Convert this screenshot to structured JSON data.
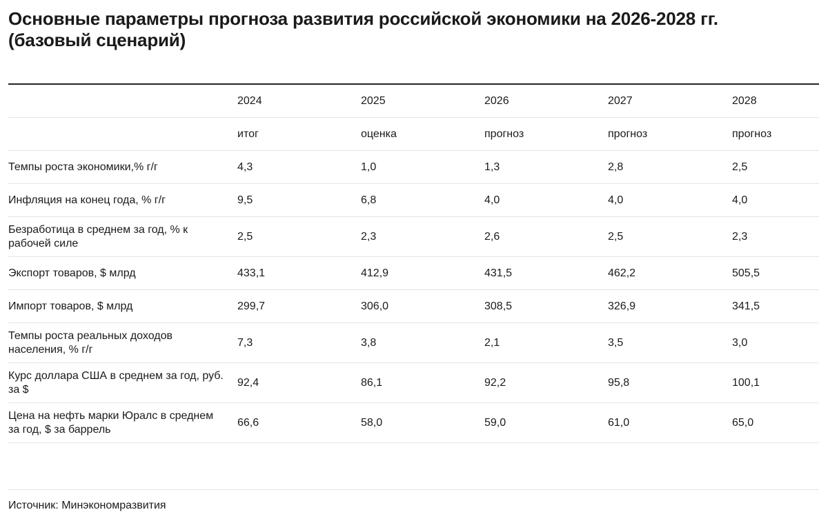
{
  "title": {
    "line1": "Основные параметры прогноза развития российской экономики на 2026-2028 гг.",
    "line2": "(базовый сценарий)"
  },
  "table": {
    "years": [
      "2024",
      "2025",
      "2026",
      "2027",
      "2028"
    ],
    "statuses": [
      "итог",
      "оценка",
      "прогноз",
      "прогноз",
      "прогноз"
    ],
    "rows": [
      {
        "label": "Темпы роста экономики,% г/г",
        "values": [
          "4,3",
          "1,0",
          "1,3",
          "2,8",
          "2,5"
        ]
      },
      {
        "label": "Инфляция на конец года, % г/г",
        "values": [
          "9,5",
          "6,8",
          "4,0",
          "4,0",
          "4,0"
        ]
      },
      {
        "label": "Безработица в среднем за год, % к рабочей силе",
        "values": [
          "2,5",
          "2,3",
          "2,6",
          "2,5",
          "2,3"
        ]
      },
      {
        "label": "Экспорт товаров, $ млрд",
        "values": [
          "433,1",
          "412,9",
          "431,5",
          "462,2",
          "505,5"
        ]
      },
      {
        "label": "Импорт товаров, $ млрд",
        "values": [
          "299,7",
          "306,0",
          "308,5",
          "326,9",
          "341,5"
        ]
      },
      {
        "label": "Темпы роста реальных доходов населения, % г/г",
        "values": [
          "7,3",
          "3,8",
          "2,1",
          "3,5",
          "3,0"
        ]
      },
      {
        "label": "Курс доллара США в среднем за год, руб. за $",
        "values": [
          "92,4",
          "86,1",
          "92,2",
          "95,8",
          "100,1"
        ]
      },
      {
        "label": "Цена на нефть марки Юралс в среднем за год, $ за баррель",
        "values": [
          "66,6",
          "58,0",
          "59,0",
          "61,0",
          "65,0"
        ]
      }
    ]
  },
  "source": "Источник: Минэкономразвития"
}
